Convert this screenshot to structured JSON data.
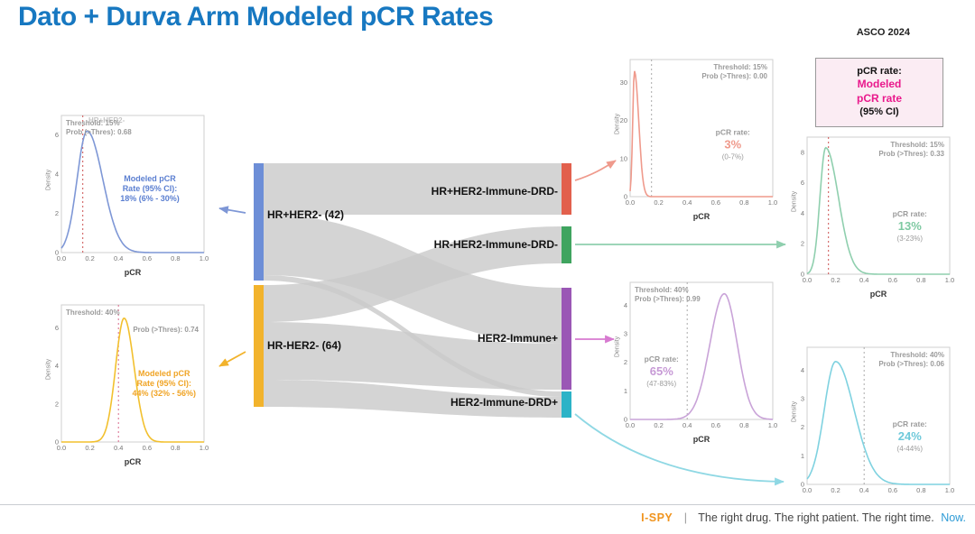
{
  "slide": {
    "title": "Dato + Durva Arm Modeled pCR Rates",
    "conference": "ASCO 2024",
    "legend_box": {
      "line1": "pCR rate:",
      "line2": "Modeled",
      "line3": "pCR rate",
      "line4": "(95% CI)"
    },
    "footer": {
      "brand": "I-SPY",
      "separator": "|",
      "tagline": "The right drug. The right patient. The right time.",
      "tagline_accent": "Now."
    }
  },
  "sankey": {
    "left_nodes": [
      {
        "label": "HR+HER2- (42)",
        "color": "#6d8ed7"
      },
      {
        "label": "HR-HER2- (64)",
        "color": "#f2b32c"
      }
    ],
    "right_nodes": [
      {
        "label": "HR+HER2-Immune-DRD-",
        "color": "#e2604d"
      },
      {
        "label": "HR-HER2-Immune-DRD-",
        "color": "#3fa45f"
      },
      {
        "label": "HER2-Immune+",
        "color": "#9a57b5"
      },
      {
        "label": "HER2-Immune-DRD+",
        "color": "#2cb3c7"
      }
    ],
    "flow_color": "#c9c9c9",
    "arrow_colors": [
      "#7e97d6",
      "#f2b32c",
      "#ef9a8c",
      "#8fcfae",
      "#d77ad0",
      "#8fd8e4"
    ]
  },
  "chart_data": [
    {
      "id": "hr-pos-her2-neg",
      "type": "area",
      "ghost_title": "HR+HER2-",
      "xlabel": "pCR",
      "ylabel": "Density",
      "xlim": [
        0,
        1
      ],
      "x_ticks": [
        "0.0",
        "0.2",
        "0.4",
        "0.6",
        "0.8",
        "1.0"
      ],
      "y_ticks": [
        0,
        2,
        4,
        6
      ],
      "ymax": 7,
      "color": "#7e97d6",
      "threshold": 0.15,
      "threshold_color": "#cc4f4f",
      "info_lines": [
        "Threshold: 15%",
        "Prob (>Thres): 0.68"
      ],
      "info_pos": "tl",
      "curve": {
        "peak": 0.18,
        "sd_left": 0.07,
        "sd_right": 0.11,
        "peak_density": 6.2
      },
      "annot": {
        "type": "modeled",
        "lines": [
          "Modeled pCR",
          "Rate (95% CI):",
          "18% (6% - 30%)"
        ],
        "color": "#5b7fd1",
        "x": 0.62,
        "y": 0.48
      }
    },
    {
      "id": "hr-neg-her2-neg",
      "type": "area",
      "xlabel": "pCR",
      "ylabel": "Density",
      "xlim": [
        0,
        1
      ],
      "x_ticks": [
        "0.0",
        "0.2",
        "0.4",
        "0.6",
        "0.8",
        "1.0"
      ],
      "y_ticks": [
        0,
        2,
        4,
        6
      ],
      "ymax": 7.2,
      "color": "#f2c02e",
      "threshold": 0.4,
      "threshold_color": "#d96a8b",
      "info_lines": [
        "Threshold: 40%",
        "Prob (>Thres): 0.74"
      ],
      "info_pos": "tl",
      "info_split": true,
      "curve": {
        "peak": 0.44,
        "sd_left": 0.06,
        "sd_right": 0.07,
        "peak_density": 6.5
      },
      "annot": {
        "type": "modeled",
        "lines": [
          "Modeled pCR",
          "Rate (95% CI):",
          "44% (32% - 56%)"
        ],
        "color": "#f0a425",
        "x": 0.72,
        "y": 0.52
      }
    },
    {
      "id": "hr-pos-immune-neg-drd-neg",
      "type": "area",
      "xlabel": "pCR",
      "ylabel": "Density",
      "xlim": [
        0,
        1
      ],
      "x_ticks": [
        "0.0",
        "0.2",
        "0.4",
        "0.6",
        "0.8",
        "1.0"
      ],
      "y_ticks": [
        0,
        10,
        20,
        30
      ],
      "ymax": 36,
      "color": "#ef9a8c",
      "threshold": 0.15,
      "threshold_color": "#aaaaaa",
      "info_lines": [
        "Threshold: 15%",
        "Prob (>Thres): 0.00"
      ],
      "info_pos": "tr",
      "curve": {
        "peak": 0.03,
        "sd_left": 0.012,
        "sd_right": 0.03,
        "peak_density": 33
      },
      "annot": {
        "type": "rate",
        "label": "pCR rate:",
        "value": "3%",
        "range": "(0-7%)",
        "color": "#ef9a8c",
        "x": 0.72,
        "y": 0.55
      }
    },
    {
      "id": "hr-neg-immune-neg-drd-neg",
      "type": "area",
      "xlabel": "pCR",
      "ylabel": "Density",
      "xlim": [
        0,
        1
      ],
      "x_ticks": [
        "0.0",
        "0.2",
        "0.4",
        "0.6",
        "0.8",
        "1.0"
      ],
      "y_ticks": [
        0,
        2,
        4,
        6,
        8
      ],
      "ymax": 9,
      "color": "#8fcfae",
      "threshold": 0.15,
      "threshold_color": "#cc4f4f",
      "info_lines": [
        "Threshold: 15%",
        "Prob (>Thres): 0.33"
      ],
      "info_pos": "tr",
      "curve": {
        "peak": 0.13,
        "sd_left": 0.04,
        "sd_right": 0.09,
        "peak_density": 8.3
      },
      "annot": {
        "type": "rate",
        "label": "pCR rate:",
        "value": "13%",
        "range": "(3-23%)",
        "color": "#7ec9a2",
        "x": 0.72,
        "y": 0.58
      }
    },
    {
      "id": "her2-immune-pos",
      "type": "area",
      "xlabel": "pCR",
      "ylabel": "Density",
      "xlim": [
        0,
        1
      ],
      "x_ticks": [
        "0.0",
        "0.2",
        "0.4",
        "0.6",
        "0.8",
        "1.0"
      ],
      "y_ticks": [
        0,
        1,
        2,
        3,
        4
      ],
      "ymax": 4.8,
      "color": "#c9a3d8",
      "threshold": 0.4,
      "threshold_color": "#aaaaaa",
      "info_lines": [
        "Threshold: 40%",
        "Prob (>Thres): 0.99"
      ],
      "info_pos": "tl",
      "curve": {
        "peak": 0.66,
        "sd_left": 0.1,
        "sd_right": 0.09,
        "peak_density": 4.4
      },
      "annot": {
        "type": "rate",
        "label": "pCR rate:",
        "value": "65%",
        "range": "(47-83%)",
        "color": "#c79ad6",
        "x": 0.22,
        "y": 0.58
      }
    },
    {
      "id": "her2-immune-neg-drd-pos",
      "type": "area",
      "xlabel": "",
      "ylabel": "Density",
      "xlim": [
        0,
        1
      ],
      "x_ticks": [
        "0.0",
        "0.2",
        "0.4",
        "0.6",
        "0.8",
        "1.0"
      ],
      "y_ticks": [
        0,
        1,
        2,
        3,
        4
      ],
      "ymax": 4.8,
      "color": "#7fd2e0",
      "threshold": 0.4,
      "threshold_color": "#aaaaaa",
      "info_lines": [
        "Threshold: 40%",
        "Prob (>Thres): 0.06"
      ],
      "info_pos": "tr",
      "curve": {
        "peak": 0.2,
        "sd_left": 0.08,
        "sd_right": 0.13,
        "peak_density": 4.3
      },
      "annot": {
        "type": "rate",
        "label": "pCR rate:",
        "value": "24%",
        "range": "(4-44%)",
        "color": "#6fc9da",
        "x": 0.72,
        "y": 0.58
      }
    }
  ]
}
